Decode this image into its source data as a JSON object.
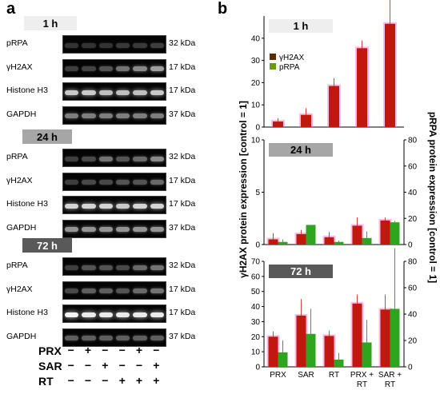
{
  "panel_a": {
    "letter": "a",
    "groups": [
      {
        "time": "1 h",
        "blots": [
          {
            "name": "pRPA",
            "kda": "32 kDa",
            "intensity": [
              0.05,
              0.05,
              0.05,
              0.08,
              0.08,
              0.1
            ]
          },
          {
            "name": "γH2AX",
            "kda": "17 kDa",
            "intensity": [
              0.1,
              0.12,
              0.2,
              0.35,
              0.45,
              0.55
            ]
          },
          {
            "name": "Histone H3",
            "kda": "17 kDa",
            "intensity": [
              0.75,
              0.75,
              0.7,
              0.7,
              0.7,
              0.75
            ]
          },
          {
            "name": "GAPDH",
            "kda": "37 kDa",
            "intensity": [
              0.4,
              0.4,
              0.4,
              0.4,
              0.4,
              0.4
            ]
          }
        ]
      },
      {
        "time": "24 h",
        "blots": [
          {
            "name": "pRPA",
            "kda": "32 kDa",
            "intensity": [
              0.1,
              0.15,
              0.35,
              0.2,
              0.3,
              0.45
            ]
          },
          {
            "name": "γH2AX",
            "kda": "17 kDa",
            "intensity": [
              0.1,
              0.15,
              0.15,
              0.2,
              0.2,
              0.3
            ]
          },
          {
            "name": "Histone H3",
            "kda": "17 kDa",
            "intensity": [
              0.8,
              0.8,
              0.8,
              0.75,
              0.8,
              0.8
            ]
          },
          {
            "name": "GAPDH",
            "kda": "37 kDa",
            "intensity": [
              0.5,
              0.5,
              0.5,
              0.5,
              0.5,
              0.5
            ]
          }
        ]
      },
      {
        "time": "72 h",
        "blots": [
          {
            "name": "pRPA",
            "kda": "32 kDa",
            "intensity": [
              0.1,
              0.2,
              0.2,
              0.15,
              0.3,
              0.35
            ]
          },
          {
            "name": "γH2AX",
            "kda": "17 kDa",
            "intensity": [
              0.15,
              0.25,
              0.25,
              0.2,
              0.3,
              0.35
            ]
          },
          {
            "name": "Histone H3",
            "kda": "17 kDa",
            "intensity": [
              0.95,
              0.9,
              0.9,
              0.9,
              0.9,
              0.9
            ]
          },
          {
            "name": "GAPDH",
            "kda": "37 kDa",
            "intensity": [
              0.25,
              0.25,
              0.25,
              0.25,
              0.25,
              0.25
            ]
          }
        ]
      }
    ],
    "treatments": [
      {
        "label": "PRX",
        "signs": [
          "−",
          "+",
          "−",
          "−",
          "+",
          "−"
        ]
      },
      {
        "label": "SAR",
        "signs": [
          "−",
          "−",
          "+",
          "−",
          "−",
          "+"
        ]
      },
      {
        "label": "RT",
        "signs": [
          "−",
          "−",
          "−",
          "+",
          "+",
          "+"
        ]
      }
    ]
  },
  "panel_b": {
    "letter": "b",
    "left_axis_label": "γH2AX protein expression [control = 1]",
    "right_axis_label": "pRPA protein expression [control = 1]"
  },
  "colors": {
    "gh2ax": "#c0180f",
    "prpa": "#2fa51f",
    "gh2ax_shadow": "#ff6ad0",
    "legend_gh2ax": "#5c2a05",
    "legend_prpa": "#6a9a10",
    "hdr_1h": "#eeeeee",
    "hdr_24h": "#a6a6a6",
    "hdr_72h": "#595959"
  },
  "chart_data": [
    {
      "type": "bar",
      "title": "1 h",
      "categories": [
        "PRX",
        "SAR",
        "RT",
        "PRX + RT",
        "SAR + RT"
      ],
      "ylim_left": [
        0,
        50
      ],
      "left_ticks": [
        0,
        10,
        20,
        30,
        40
      ],
      "legend": [
        "γH2AX",
        "pRPA"
      ],
      "series": [
        {
          "name": "γH2AX",
          "axis": "left",
          "values": [
            2.5,
            5.5,
            18.5,
            35.5,
            46.5
          ],
          "errors": [
            1.5,
            3,
            3.5,
            3.5,
            17
          ]
        }
      ]
    },
    {
      "type": "bar",
      "title": "24 h",
      "categories": [
        "PRX",
        "SAR",
        "RT",
        "PRX + RT",
        "SAR + RT"
      ],
      "ylim_left": [
        0,
        10
      ],
      "left_ticks": [
        0,
        5,
        10
      ],
      "ylim_right": [
        0,
        80
      ],
      "right_ticks": [
        0,
        20,
        40,
        60,
        80
      ],
      "series": [
        {
          "name": "γH2AX",
          "axis": "left",
          "values": [
            0.5,
            1.0,
            0.7,
            1.8,
            2.3
          ],
          "errors": [
            0.6,
            0.4,
            0.5,
            0.8,
            0.3
          ]
        },
        {
          "name": "pRPA",
          "axis": "right",
          "values": [
            2,
            15,
            2,
            5,
            17
          ],
          "errors": [
            2,
            0,
            1,
            5,
            1
          ]
        }
      ]
    },
    {
      "type": "bar",
      "title": "72 h",
      "categories": [
        "PRX",
        "SAR",
        "RT",
        "PRX + RT",
        "SAR + RT"
      ],
      "ylim_left": [
        0,
        70
      ],
      "left_ticks": [
        0,
        10,
        20,
        30,
        40,
        50,
        60,
        70
      ],
      "ylim_right": [
        0,
        80
      ],
      "right_ticks": [
        0,
        20,
        40,
        60,
        80
      ],
      "series": [
        {
          "name": "γH2AX",
          "axis": "left",
          "values": [
            20,
            34,
            20.5,
            42,
            38
          ],
          "errors": [
            3.5,
            11,
            3.5,
            6,
            10
          ]
        },
        {
          "name": "pRPA",
          "axis": "right",
          "values": [
            11,
            25,
            5.5,
            18.5,
            44
          ],
          "errors": [
            9,
            19,
            5,
            17,
            46
          ]
        }
      ]
    }
  ]
}
